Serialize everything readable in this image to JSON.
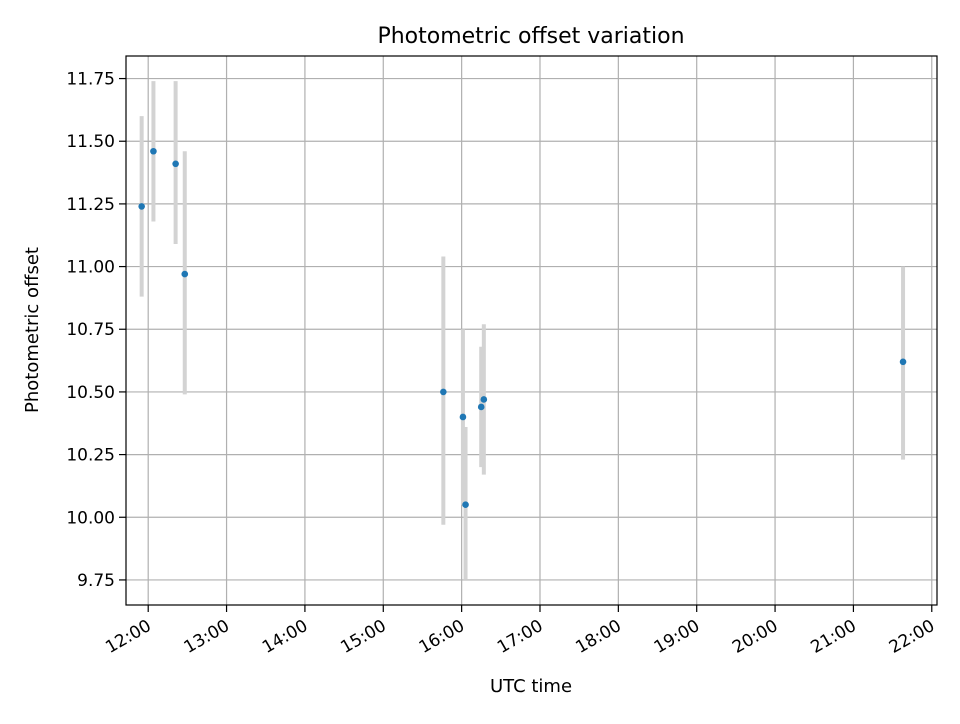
{
  "chart_data": {
    "type": "scatter",
    "title": "Photometric offset variation",
    "xlabel": "UTC time",
    "ylabel": "Photometric offset",
    "x_tick_labels": [
      "12:00",
      "13:00",
      "14:00",
      "15:00",
      "16:00",
      "17:00",
      "18:00",
      "19:00",
      "20:00",
      "21:00",
      "22:00"
    ],
    "y_ticks": [
      9.75,
      10.0,
      10.25,
      10.5,
      10.75,
      11.0,
      11.25,
      11.5,
      11.75
    ],
    "y_tick_labels": [
      "9.75",
      "10.00",
      "10.25",
      "10.50",
      "10.75",
      "11.00",
      "11.25",
      "11.50",
      "11.75"
    ],
    "xlim": [
      "11:43",
      "22:04"
    ],
    "ylim": [
      9.65,
      11.84
    ],
    "grid": true,
    "legend": "none",
    "colors": {
      "point": "#1f77b4",
      "errorbar": "#d3d3d3",
      "grid": "#b0b0b0"
    },
    "points": [
      {
        "x": "11:55",
        "y": 11.24,
        "ylow": 10.88,
        "yhigh": 11.6
      },
      {
        "x": "12:04",
        "y": 11.46,
        "ylow": 11.18,
        "yhigh": 11.74
      },
      {
        "x": "12:21",
        "y": 11.41,
        "ylow": 11.09,
        "yhigh": 11.74
      },
      {
        "x": "12:28",
        "y": 10.97,
        "ylow": 10.49,
        "yhigh": 11.46
      },
      {
        "x": "15:46",
        "y": 10.5,
        "ylow": 9.97,
        "yhigh": 11.04
      },
      {
        "x": "16:01",
        "y": 10.4,
        "ylow": 10.05,
        "yhigh": 10.75
      },
      {
        "x": "16:03",
        "y": 10.05,
        "ylow": 9.75,
        "yhigh": 10.36
      },
      {
        "x": "16:15",
        "y": 10.44,
        "ylow": 10.2,
        "yhigh": 10.68
      },
      {
        "x": "16:17",
        "y": 10.47,
        "ylow": 10.17,
        "yhigh": 10.77
      },
      {
        "x": "21:38",
        "y": 10.62,
        "ylow": 10.23,
        "yhigh": 11.0
      }
    ]
  }
}
